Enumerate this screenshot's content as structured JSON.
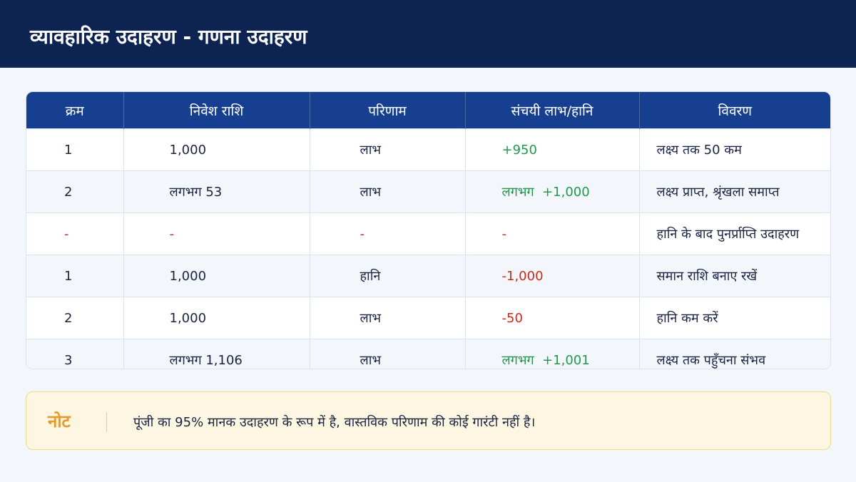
{
  "header": {
    "title": "व्यावहारिक उदाहरण - गणना उदाहरण"
  },
  "table": {
    "columns": [
      "क्रम",
      "निवेश राशि",
      "परिणाम",
      "संचयी लाभ/हानि",
      "विवरण"
    ],
    "rows": [
      [
        "1",
        "1,000",
        "लाभ",
        "+950",
        "लक्ष्य तक 50 कम"
      ],
      [
        "2",
        "लगभग 53",
        "लाभ",
        "लगभग  +1,000",
        "लक्ष्य प्राप्त, श्रृंखला समाप्त"
      ],
      [
        "-",
        "-",
        "-",
        "-",
        "हानि के बाद पुनर्प्राप्ति उदाहरण"
      ],
      [
        "1",
        "1,000",
        "हानि",
        "-1,000",
        "समान राशि बनाए रखें"
      ],
      [
        "2",
        "1,000",
        "लाभ",
        "-50",
        "हानि कम करें"
      ],
      [
        "3",
        "लगभग 1,106",
        "लाभ",
        "लगभग  +1,001",
        "लक्ष्य तक पहुँचना संभव"
      ]
    ]
  },
  "note": {
    "label": "नोट",
    "text": "पूंजी का 95% मानक उदाहरण के रूप में है, वास्तविक परिणाम की कोई गारंटी नहीं है।"
  }
}
